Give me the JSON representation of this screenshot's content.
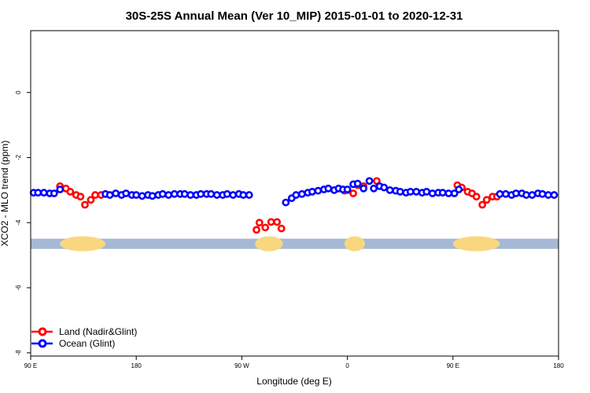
{
  "chart_data": {
    "type": "scatter",
    "title": "30S-25S Annual Mean (Ver 10_MIP)   2015-01-01 to 2020-12-31",
    "xlabel": "Longitude (deg E)",
    "ylabel": "XCO2 - MLO trend (ppm)",
    "xlim": [
      90,
      450
    ],
    "ylim": [
      -8.1,
      1.9
    ],
    "x_ticks": [
      {
        "value": 90,
        "label": "90 E"
      },
      {
        "value": 162,
        "label": "180"
      },
      {
        "value": 234,
        "label": "90 W"
      },
      {
        "value": 306,
        "label": "0"
      },
      {
        "value": 378,
        "label": "90 E"
      },
      {
        "value": 450,
        "label": "180"
      }
    ],
    "y_ticks": [
      {
        "value": 0,
        "label": "0"
      },
      {
        "value": -2,
        "label": "-2"
      },
      {
        "value": -4,
        "label": "-4"
      },
      {
        "value": -6,
        "label": "-6"
      },
      {
        "value": -8,
        "label": "-8"
      }
    ],
    "land_ocean_bar": {
      "y": -4.65,
      "ocean_color": "#a5b9d6",
      "land_color": "#f9d77e",
      "land_segments": [
        [
          110,
          141
        ],
        [
          243,
          262
        ],
        [
          304,
          318
        ],
        [
          378,
          410
        ]
      ]
    },
    "series": [
      {
        "name": "Land (Nadir&Glint)",
        "color": "#ff0000",
        "points": [
          [
            110,
            -2.88
          ],
          [
            114,
            -2.95
          ],
          [
            117,
            -3.05
          ],
          [
            121,
            -3.15
          ],
          [
            124,
            -3.2
          ],
          [
            127,
            -3.45
          ],
          [
            131,
            -3.3
          ],
          [
            134,
            -3.15
          ],
          [
            138,
            -3.15
          ],
          [
            244,
            -4.22
          ],
          [
            246,
            -4.0
          ],
          [
            250,
            -4.15
          ],
          [
            254,
            -3.98
          ],
          [
            258,
            -3.98
          ],
          [
            261,
            -4.18
          ],
          [
            304,
            -3.02
          ],
          [
            306,
            -3.0
          ],
          [
            310,
            -3.1
          ],
          [
            313,
            -2.85
          ],
          [
            317,
            -2.88
          ],
          [
            326,
            -2.72
          ],
          [
            381,
            -2.85
          ],
          [
            384,
            -2.92
          ],
          [
            388,
            -3.05
          ],
          [
            391,
            -3.1
          ],
          [
            394,
            -3.2
          ],
          [
            398,
            -3.45
          ],
          [
            401,
            -3.3
          ],
          [
            405,
            -3.2
          ],
          [
            408,
            -3.2
          ]
        ]
      },
      {
        "name": "Ocean (Glint)",
        "color": "#0000ff",
        "points": [
          [
            92,
            -3.08
          ],
          [
            95,
            -3.08
          ],
          [
            99,
            -3.08
          ],
          [
            103,
            -3.1
          ],
          [
            106,
            -3.1
          ],
          [
            110,
            -2.98
          ],
          [
            141,
            -3.12
          ],
          [
            144,
            -3.15
          ],
          [
            148,
            -3.1
          ],
          [
            152,
            -3.15
          ],
          [
            155,
            -3.1
          ],
          [
            159,
            -3.15
          ],
          [
            162,
            -3.15
          ],
          [
            166,
            -3.18
          ],
          [
            170,
            -3.15
          ],
          [
            173,
            -3.18
          ],
          [
            177,
            -3.15
          ],
          [
            180,
            -3.12
          ],
          [
            184,
            -3.15
          ],
          [
            188,
            -3.12
          ],
          [
            192,
            -3.12
          ],
          [
            195,
            -3.12
          ],
          [
            199,
            -3.15
          ],
          [
            203,
            -3.15
          ],
          [
            206,
            -3.12
          ],
          [
            210,
            -3.12
          ],
          [
            213,
            -3.12
          ],
          [
            217,
            -3.15
          ],
          [
            221,
            -3.15
          ],
          [
            224,
            -3.12
          ],
          [
            228,
            -3.15
          ],
          [
            232,
            -3.12
          ],
          [
            235,
            -3.15
          ],
          [
            239,
            -3.15
          ],
          [
            264,
            -3.38
          ],
          [
            268,
            -3.25
          ],
          [
            271,
            -3.15
          ],
          [
            275,
            -3.12
          ],
          [
            279,
            -3.08
          ],
          [
            282,
            -3.05
          ],
          [
            286,
            -3.02
          ],
          [
            290,
            -2.98
          ],
          [
            293,
            -2.95
          ],
          [
            297,
            -3.0
          ],
          [
            300,
            -2.95
          ],
          [
            303,
            -2.98
          ],
          [
            306,
            -2.98
          ],
          [
            310,
            -2.82
          ],
          [
            313,
            -2.8
          ],
          [
            317,
            -2.95
          ],
          [
            321,
            -2.72
          ],
          [
            324,
            -2.95
          ],
          [
            328,
            -2.88
          ],
          [
            331,
            -2.92
          ],
          [
            335,
            -3.0
          ],
          [
            339,
            -3.02
          ],
          [
            342,
            -3.05
          ],
          [
            346,
            -3.08
          ],
          [
            349,
            -3.05
          ],
          [
            353,
            -3.05
          ],
          [
            357,
            -3.08
          ],
          [
            360,
            -3.05
          ],
          [
            364,
            -3.1
          ],
          [
            368,
            -3.08
          ],
          [
            371,
            -3.08
          ],
          [
            375,
            -3.1
          ],
          [
            379,
            -3.1
          ],
          [
            382,
            -2.98
          ],
          [
            410,
            -3.12
          ],
          [
            414,
            -3.12
          ],
          [
            418,
            -3.15
          ],
          [
            421,
            -3.1
          ],
          [
            425,
            -3.1
          ],
          [
            428,
            -3.15
          ],
          [
            432,
            -3.15
          ],
          [
            436,
            -3.1
          ],
          [
            439,
            -3.12
          ],
          [
            443,
            -3.15
          ],
          [
            447,
            -3.15
          ]
        ]
      }
    ]
  }
}
